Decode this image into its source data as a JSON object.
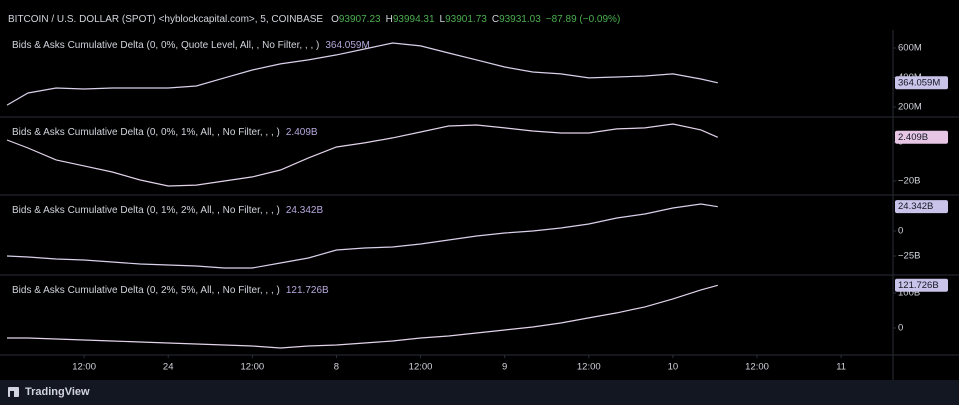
{
  "header": {
    "symbol": "BITCOIN / U.S. DOLLAR (SPOT) <hyblockcapital.com>, 5, COINBASE",
    "ohlc": [
      {
        "key": "O",
        "value": "93907.23"
      },
      {
        "key": "H",
        "value": "93994.31"
      },
      {
        "key": "L",
        "value": "93901.73"
      },
      {
        "key": "C",
        "value": "93931.03"
      }
    ],
    "change": "−87.89 (−0.09%)"
  },
  "time_axis": {
    "xlim": [
      0,
      127.4
    ],
    "xticks": [
      {
        "value": 12,
        "label": "12:00"
      },
      24,
      {
        "value": 36,
        "label": "12:00"
      },
      {
        "value": 48,
        "label": "8"
      },
      {
        "value": 60,
        "label": "12:00"
      },
      {
        "value": 72,
        "label": "9"
      },
      {
        "value": 84,
        "label": "12:00"
      },
      {
        "value": 96,
        "label": "10"
      },
      {
        "value": 108,
        "label": "12:00"
      },
      {
        "value": 120,
        "label": "11"
      }
    ]
  },
  "footer": {
    "brand": "TradingView"
  },
  "chart_data": [
    {
      "type": "line",
      "title": "Bids & Asks Cumulative Delta (0, 0%, Quote Level, All, , No Filter, , , )",
      "current": {
        "value": 364.059,
        "label": "364.059M"
      },
      "label_color": "#c9c3ea",
      "x": [
        1,
        4,
        8,
        12,
        16,
        20,
        24,
        28,
        32,
        36,
        40,
        44,
        48,
        52,
        56,
        60,
        64,
        68,
        72,
        76,
        80,
        84,
        88,
        92,
        96,
        100,
        102.4
      ],
      "series": [
        {
          "color": "#d9d0ea",
          "values": [
            213,
            295,
            329,
            322,
            329,
            329,
            329,
            342,
            397,
            451,
            492,
            519,
            553,
            593,
            634,
            614,
            566,
            519,
            471,
            437,
            424,
            397,
            403,
            410,
            424,
            390,
            364.059
          ]
        }
      ],
      "ylim": [
        132,
        722
      ],
      "yticks": [
        {
          "value": 200,
          "label": "200M"
        },
        {
          "value": 400,
          "label": "400M"
        },
        {
          "value": 600,
          "label": "600M"
        }
      ]
    },
    {
      "type": "line",
      "title": "Bids & Asks Cumulative Delta (0, 0%, 1%, All, , No Filter, , , )",
      "current": {
        "value": 2.409,
        "label": "2.409B"
      },
      "label_color": "#e6c6e4",
      "x": [
        1,
        4,
        8,
        12,
        16,
        20,
        24,
        28,
        32,
        36,
        40,
        44,
        48,
        52,
        56,
        60,
        64,
        68,
        72,
        76,
        80,
        84,
        88,
        92,
        96,
        100,
        102.4
      ],
      "series": [
        {
          "color": "#e2d3ea",
          "values": [
            1.0,
            -3.1,
            -9.2,
            -12.3,
            -15.4,
            -19.5,
            -22.6,
            -22.1,
            -20.0,
            -17.9,
            -14.4,
            -8.2,
            -2.6,
            -0.5,
            2.1,
            5.1,
            8.2,
            8.7,
            7.2,
            5.6,
            4.6,
            4.6,
            6.7,
            7.2,
            9.2,
            6.2,
            2.409
          ]
        }
      ],
      "ylim": [
        -27.2,
        12.8
      ],
      "yticks": [
        0,
        {
          "value": -20,
          "label": "−20B"
        }
      ]
    },
    {
      "type": "line",
      "title": "Bids & Asks Cumulative Delta (0, 1%, 2%, All, , No Filter, , , )",
      "current": {
        "value": 24.342,
        "label": "24.342B"
      },
      "label_color": "#c9c3ea",
      "x": [
        1,
        4,
        8,
        12,
        16,
        20,
        24,
        28,
        32,
        36,
        40,
        44,
        48,
        52,
        56,
        60,
        64,
        68,
        72,
        76,
        80,
        84,
        88,
        92,
        96,
        100,
        102.4
      ],
      "series": [
        {
          "color": "#d9d0ea",
          "values": [
            -25,
            -26,
            -28,
            -29,
            -31,
            -33,
            -34,
            -35,
            -37,
            -37,
            -32,
            -27,
            -19,
            -17,
            -16,
            -13,
            -9,
            -5,
            -2,
            0,
            3,
            7,
            13,
            17,
            23,
            27,
            24.342
          ]
        }
      ],
      "ylim": [
        -44,
        36
      ],
      "yticks": [
        0,
        {
          "value": -25,
          "label": "−25B"
        }
      ]
    },
    {
      "type": "line",
      "title": "Bids & Asks Cumulative Delta (0, 2%, 5%, All, , No Filter, , , )",
      "current": {
        "value": 121.726,
        "label": "121.726B"
      },
      "label_color": "#c9c3ea",
      "x": [
        1,
        4,
        8,
        12,
        16,
        20,
        24,
        28,
        32,
        36,
        40,
        44,
        48,
        52,
        56,
        60,
        64,
        68,
        72,
        76,
        80,
        84,
        88,
        92,
        96,
        100,
        102.4
      ],
      "series": [
        {
          "color": "#e2d3ea",
          "values": [
            -28.6,
            -28.6,
            -31.4,
            -34.3,
            -37.1,
            -40,
            -42.9,
            -45.7,
            -48.6,
            -51.4,
            -57.1,
            -51.4,
            -48.6,
            -42.9,
            -37.1,
            -28.6,
            -22.9,
            -14.3,
            -5.7,
            2.9,
            14.3,
            28.6,
            42.9,
            60,
            82.9,
            108.6,
            121.726
          ]
        }
      ],
      "ylim": [
        -77,
        151
      ],
      "yticks": [
        0,
        {
          "value": 100,
          "label": "100B"
        }
      ]
    }
  ]
}
